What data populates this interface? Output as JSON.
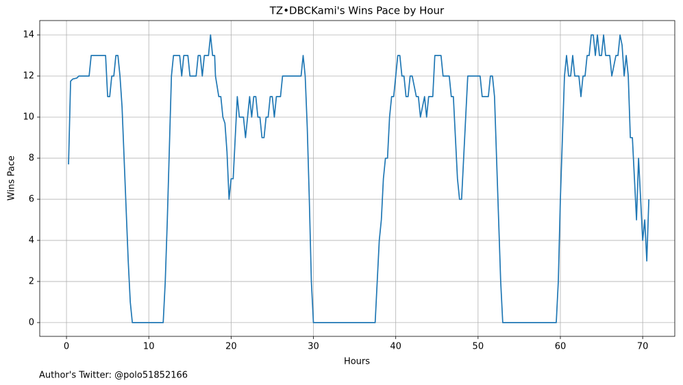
{
  "chart_data": {
    "type": "line",
    "title": "TZ•DBCKami's Wins Pace by Hour",
    "x_label": "Hours",
    "y_label": "Wins Pace",
    "footnote": "Author's Twitter: @polo51852166",
    "color": "#1f77b4",
    "grid": true,
    "xlim": [
      -3.25,
      73.9
    ],
    "ylim": [
      -0.67,
      14.7
    ],
    "xticks": [
      0,
      10,
      20,
      30,
      40,
      50,
      60,
      70
    ],
    "yticks": [
      0,
      2,
      4,
      6,
      8,
      10,
      12,
      14
    ],
    "x": [
      0.25,
      0.5,
      0.75,
      1.25,
      1.5,
      2.75,
      3,
      4.75,
      5,
      5.25,
      5.5,
      5.75,
      6,
      6.25,
      6.5,
      6.75,
      7,
      7.25,
      7.5,
      7.75,
      8,
      11.75,
      12,
      12.25,
      12.5,
      12.75,
      13,
      13.75,
      14,
      14.25,
      14.75,
      15,
      15.75,
      16,
      16.25,
      16.5,
      16.75,
      17.25,
      17.5,
      17.75,
      18,
      18.1,
      18.5,
      18.75,
      19,
      19.25,
      19.5,
      19.75,
      20,
      20.25,
      20.5,
      20.75,
      21,
      21.5,
      21.75,
      22,
      22.25,
      22.5,
      22.75,
      23,
      23.25,
      23.5,
      23.75,
      24,
      24.25,
      24.5,
      24.75,
      25,
      25.25,
      25.5,
      26,
      26.25,
      28.5,
      28.75,
      29,
      29.25,
      29.5,
      29.75,
      30,
      37.5,
      37.75,
      38,
      38.25,
      38.5,
      38.75,
      39,
      39.25,
      39.5,
      39.75,
      40,
      40.25,
      40.5,
      40.75,
      41,
      41.25,
      41.5,
      41.75,
      42,
      42.5,
      42.75,
      43,
      43.25,
      43.5,
      43.75,
      44,
      44.5,
      44.75,
      45.5,
      45.75,
      46.5,
      46.75,
      47,
      47.25,
      47.5,
      47.75,
      48,
      48.25,
      48.5,
      48.75,
      50.25,
      50.5,
      51.25,
      51.5,
      51.75,
      52,
      52.25,
      52.5,
      52.75,
      53,
      59.5,
      59.75,
      60,
      60.25,
      60.5,
      60.75,
      61,
      61.25,
      61.5,
      61.75,
      62.25,
      62.5,
      62.75,
      63,
      63.25,
      63.5,
      63.75,
      64,
      64.25,
      64.5,
      64.75,
      65,
      65.25,
      65.5,
      66,
      66.25,
      66.5,
      66.75,
      67,
      67.25,
      67.5,
      67.75,
      68,
      68.25,
      68.5,
      68.75,
      69,
      69.25,
      69.5,
      69.75,
      70,
      70.25,
      70.5,
      70.75
    ],
    "values": [
      7.7,
      11.75,
      11.85,
      11.9,
      12,
      12,
      13,
      13,
      11,
      11,
      12,
      12,
      13,
      13,
      12,
      10.5,
      8,
      5.5,
      3,
      1,
      0,
      0,
      2,
      5,
      8.5,
      12,
      13,
      13,
      12,
      13,
      13,
      12,
      12,
      13,
      13,
      12,
      13,
      13,
      14,
      13,
      13,
      12,
      11,
      11,
      10,
      9.7,
      8.3,
      6,
      7,
      7,
      9,
      11,
      10,
      10,
      9,
      10,
      11,
      10,
      11,
      11,
      10,
      10,
      9,
      9,
      10,
      10,
      11,
      11,
      10,
      11,
      11,
      12,
      12,
      13,
      12,
      9.5,
      6,
      2,
      0,
      0,
      2,
      4,
      5,
      7,
      8,
      8,
      10,
      11,
      11,
      12,
      13,
      13,
      12,
      12,
      11,
      11,
      12,
      12,
      11,
      11,
      10,
      10.5,
      11,
      10,
      11,
      11,
      13,
      13,
      12,
      12,
      11,
      11,
      9,
      7,
      6,
      6,
      8,
      10,
      12,
      12,
      11,
      11,
      12,
      12,
      11,
      8,
      5,
      2,
      0,
      0,
      2,
      6,
      9,
      12,
      13,
      12,
      12,
      13,
      12,
      12,
      11,
      12,
      12,
      13,
      13,
      14,
      14,
      13,
      14,
      13,
      13,
      14,
      13,
      13,
      12,
      12.5,
      13,
      13,
      14,
      13.5,
      12,
      13,
      12,
      9,
      9,
      7,
      5,
      8,
      6,
      4,
      5,
      3,
      6
    ]
  }
}
